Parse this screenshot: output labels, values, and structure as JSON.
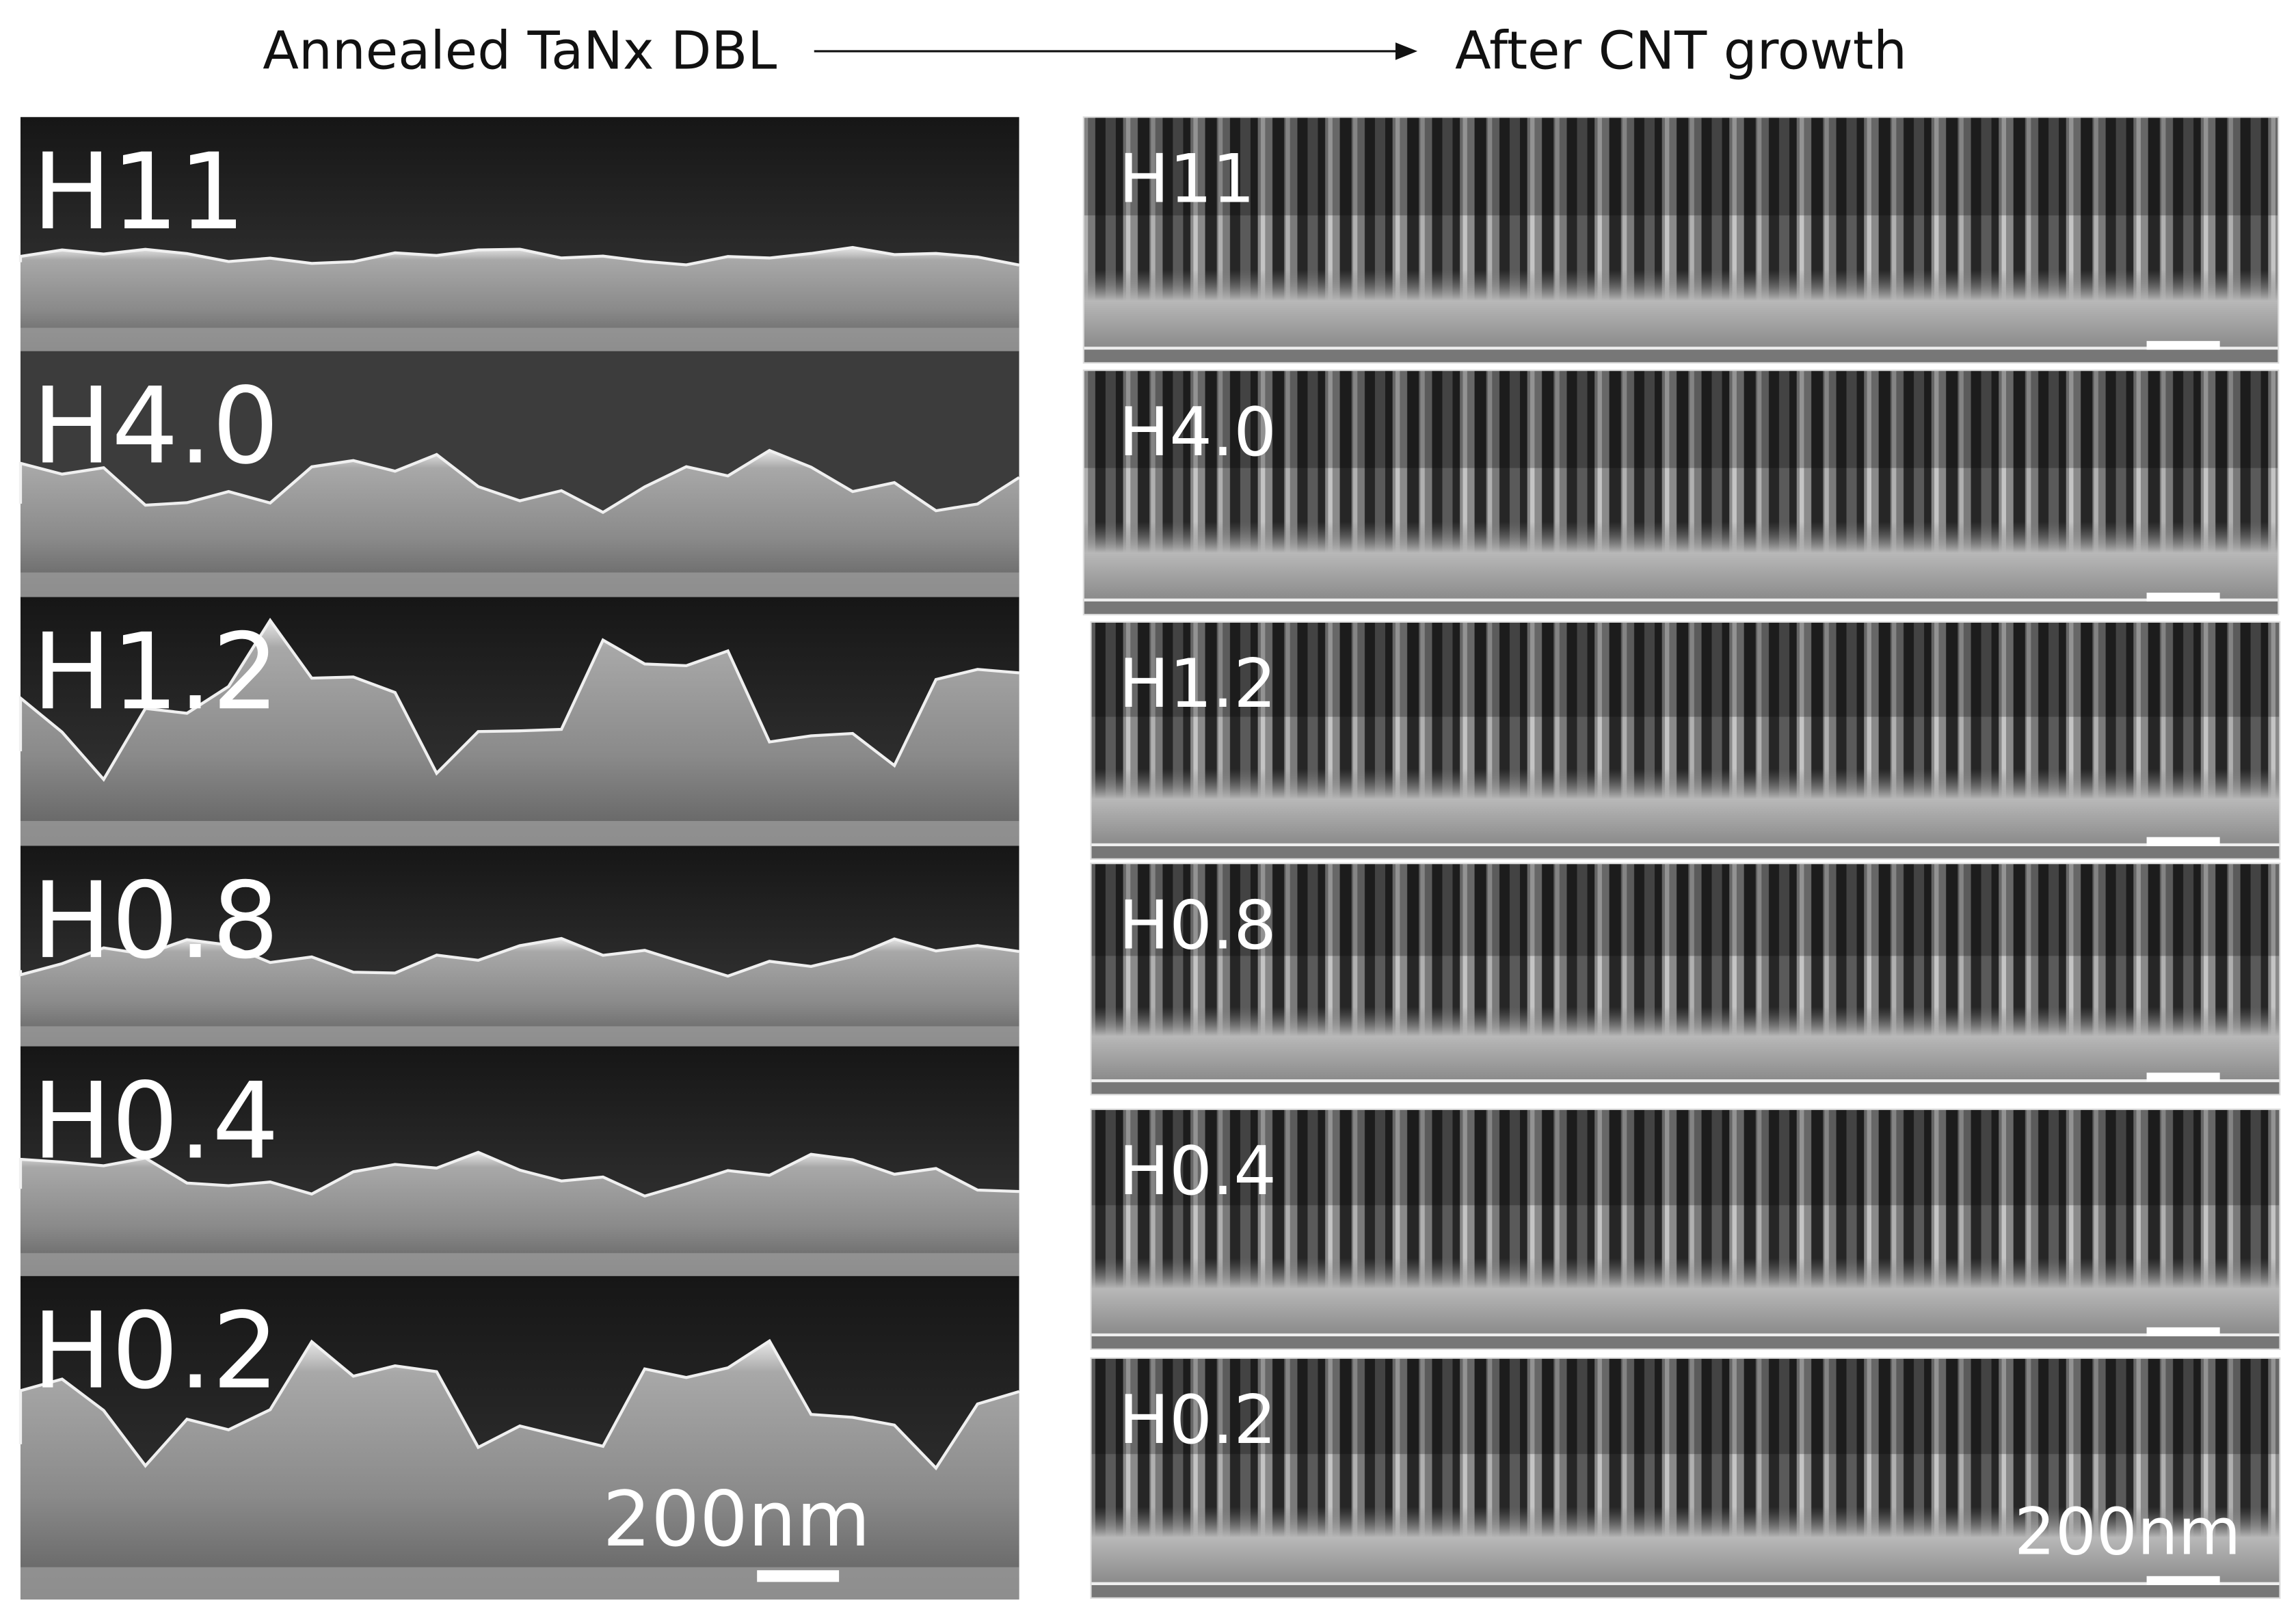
{
  "header": {
    "left_title": "Annealed TaNx DBL",
    "right_title": "After CNT growth"
  },
  "left_panels": [
    {
      "label": "H11"
    },
    {
      "label": "H4.0"
    },
    {
      "label": "H1.2"
    },
    {
      "label": "H0.8"
    },
    {
      "label": "H0.4"
    },
    {
      "label": "H0.2"
    }
  ],
  "left_scale_label": "200nm",
  "right_panels": [
    {
      "label": "H11"
    },
    {
      "label": "H4.0"
    },
    {
      "label": "H1.2"
    },
    {
      "label": "H0.8"
    },
    {
      "label": "H0.4"
    },
    {
      "label": "H0.2"
    }
  ],
  "right_scale_label": "200nm"
}
